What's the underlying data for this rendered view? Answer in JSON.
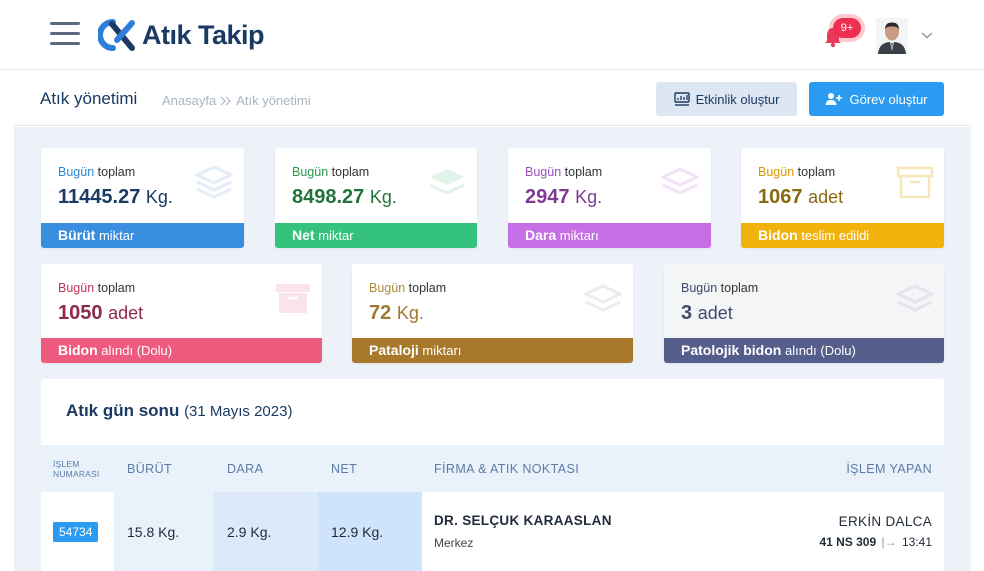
{
  "app": {
    "logo_text": "Atık Takip",
    "notification_badge": "9+"
  },
  "header": {
    "title": "Atık yönetimi",
    "breadcrumb": [
      "Anasayfa",
      "Atık yönetimi"
    ],
    "activity_button": "Etkinlik oluştur",
    "task_button": "Görev oluştur"
  },
  "cards": [
    {
      "prefix": "Bugün",
      "label": "toplam",
      "value": "11445.27",
      "unit": "Kg.",
      "bar_bold": "Bürüt",
      "bar_text": "miktar",
      "color": "#3a8ee0",
      "accent": "#2e86d6"
    },
    {
      "prefix": "Bugün",
      "label": "toplam",
      "value": "8498.27",
      "unit": "Kg.",
      "bar_bold": "Net",
      "bar_text": "miktar",
      "color": "#34c27d",
      "accent": "#2a9a4f"
    },
    {
      "prefix": "Bugün",
      "label": "toplam",
      "value": "2947",
      "unit": "Kg.",
      "bar_bold": "Dara",
      "bar_text": "miktarı",
      "color": "#c56ee6",
      "accent": "#8e3fa9"
    },
    {
      "prefix": "Bugün",
      "label": "toplam",
      "value": "1067",
      "unit": "adet",
      "bar_bold": "Bidon",
      "bar_text": "teslim edildi",
      "color": "#f2b20c",
      "accent": "#d69a00"
    },
    {
      "prefix": "Bugün",
      "label": "toplam",
      "value": "1050",
      "unit": "adet",
      "bar_bold": "Bidon",
      "bar_text": "alındı (Dolu)",
      "color": "#ee5b7f",
      "accent": "#b83659"
    },
    {
      "prefix": "Bugün",
      "label": "toplam",
      "value": "72",
      "unit": "Kg.",
      "bar_bold": "Pataloji",
      "bar_text": "miktarı",
      "color": "#a8792a",
      "accent": "#b08a3a"
    },
    {
      "prefix": "Bugün",
      "label": "toplam",
      "value": "3",
      "unit": "adet",
      "bar_bold": "Patolojik bidon",
      "bar_text": "alındı (Dolu)",
      "color": "#555d8b",
      "accent": "#3e4a6e"
    }
  ],
  "table": {
    "title": "Atık gün sonu",
    "date": "(31 Mayıs 2023)",
    "columns": {
      "id": [
        "İŞLEM",
        "NUMARASI"
      ],
      "gross": "BÜRÜT",
      "tare": "DARA",
      "net": "NET",
      "firm": "FİRMA & ATIK NOKTASI",
      "doer": "İŞLEM YAPAN"
    },
    "rows": [
      {
        "id": "54734",
        "gross": "15.8 Kg.",
        "tare": "2.9 Kg.",
        "net": "12.9 Kg.",
        "firm": "DR. SELÇUK KARAASLAN",
        "location": "Merkez",
        "doer": "ERKİN DALCA",
        "plate": "41 NS 309",
        "time": "13:41"
      }
    ]
  }
}
